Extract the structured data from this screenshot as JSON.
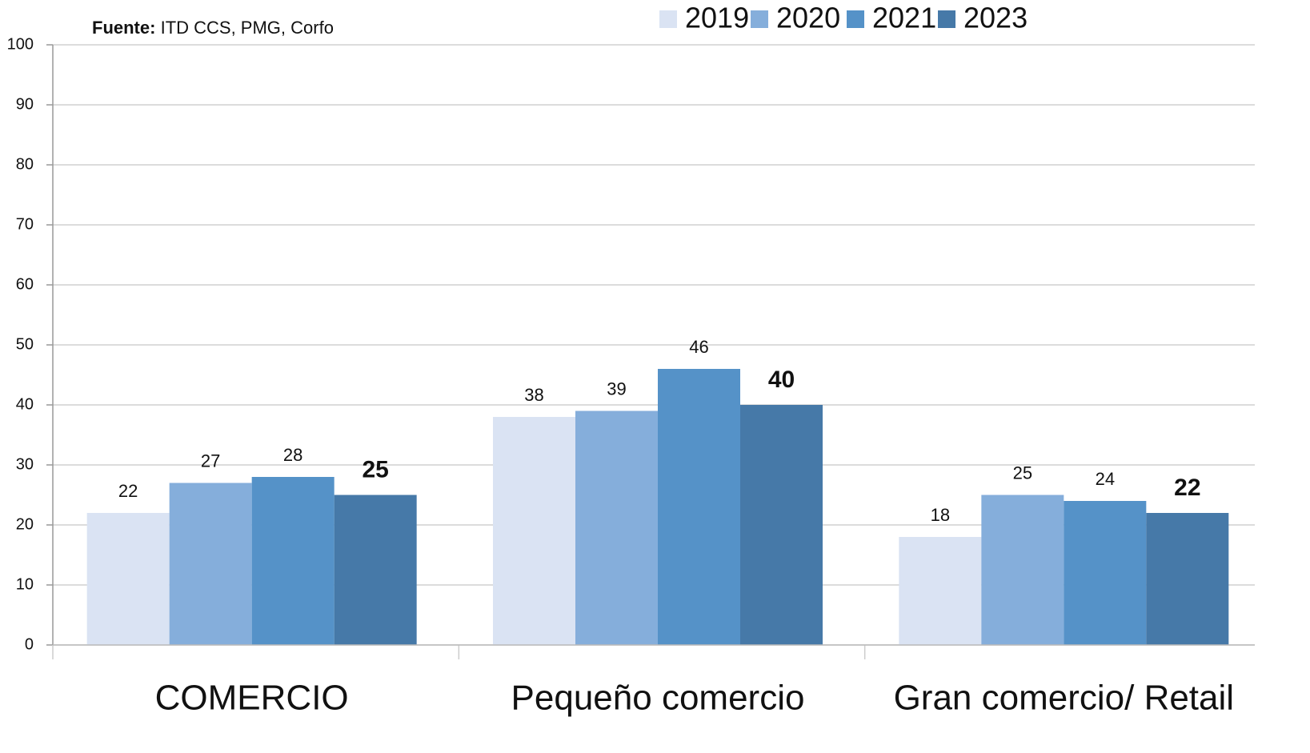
{
  "chart_data": {
    "type": "bar",
    "source_label": "Fuente:",
    "source": "ITD CCS, PMG, Corfo",
    "categories": [
      "COMERCIO",
      "Pequeño comercio",
      "Gran comercio/ Retail"
    ],
    "series": [
      {
        "name": "2019",
        "color": "#dae3f3",
        "values": [
          22,
          38,
          18
        ]
      },
      {
        "name": "2020",
        "color": "#85aedb",
        "values": [
          27,
          39,
          25
        ]
      },
      {
        "name": "2021",
        "color": "#5592c8",
        "values": [
          28,
          46,
          24
        ]
      },
      {
        "name": "2023",
        "color": "#4679a8",
        "values": [
          25,
          40,
          22
        ]
      }
    ],
    "ylim": [
      0,
      100
    ],
    "yticks": [
      0,
      10,
      20,
      30,
      40,
      50,
      60,
      70,
      80,
      90,
      100
    ],
    "grid": true,
    "legend": "top"
  }
}
